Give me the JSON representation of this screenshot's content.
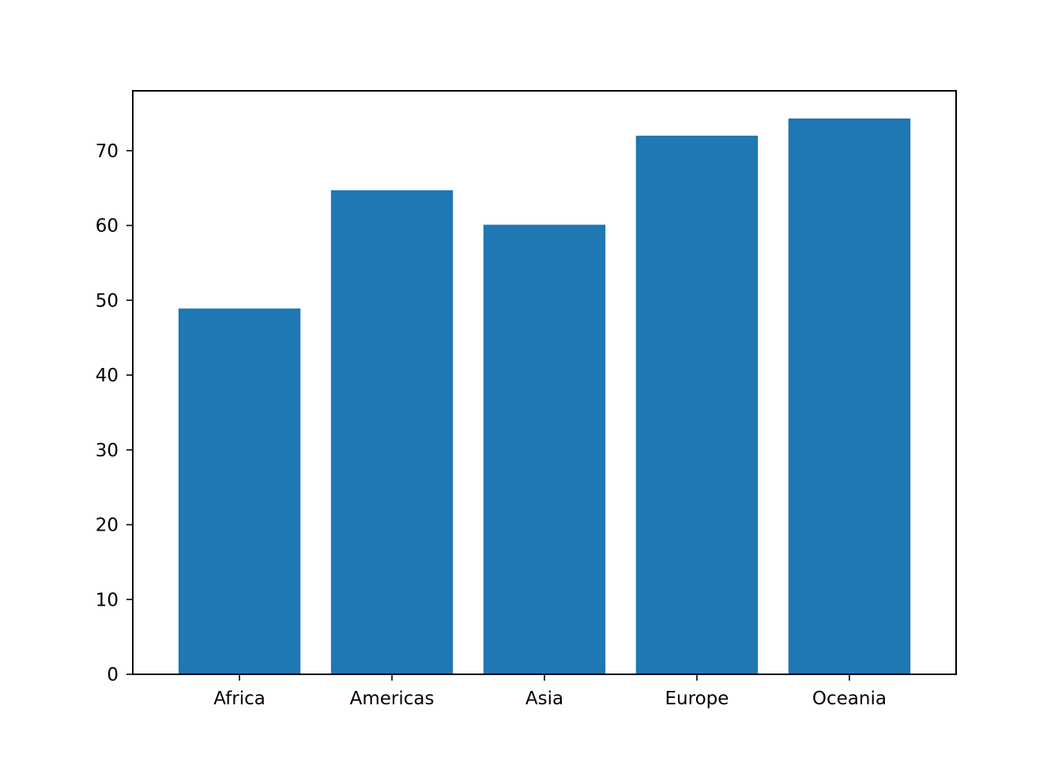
{
  "chart_data": {
    "type": "bar",
    "title": "",
    "xlabel": "",
    "ylabel": "",
    "categories": [
      "Africa",
      "Americas",
      "Asia",
      "Europe",
      "Oceania"
    ],
    "values": [
      48.9,
      64.7,
      60.1,
      72.0,
      74.3
    ],
    "ylim": [
      0,
      78
    ],
    "yticks": [
      0,
      10,
      20,
      30,
      40,
      50,
      60,
      70
    ],
    "ytick_labels": [
      "0",
      "10",
      "20",
      "30",
      "40",
      "50",
      "60",
      "70"
    ],
    "grid": false,
    "legend": "none",
    "bar_color": "#1f77b4"
  }
}
